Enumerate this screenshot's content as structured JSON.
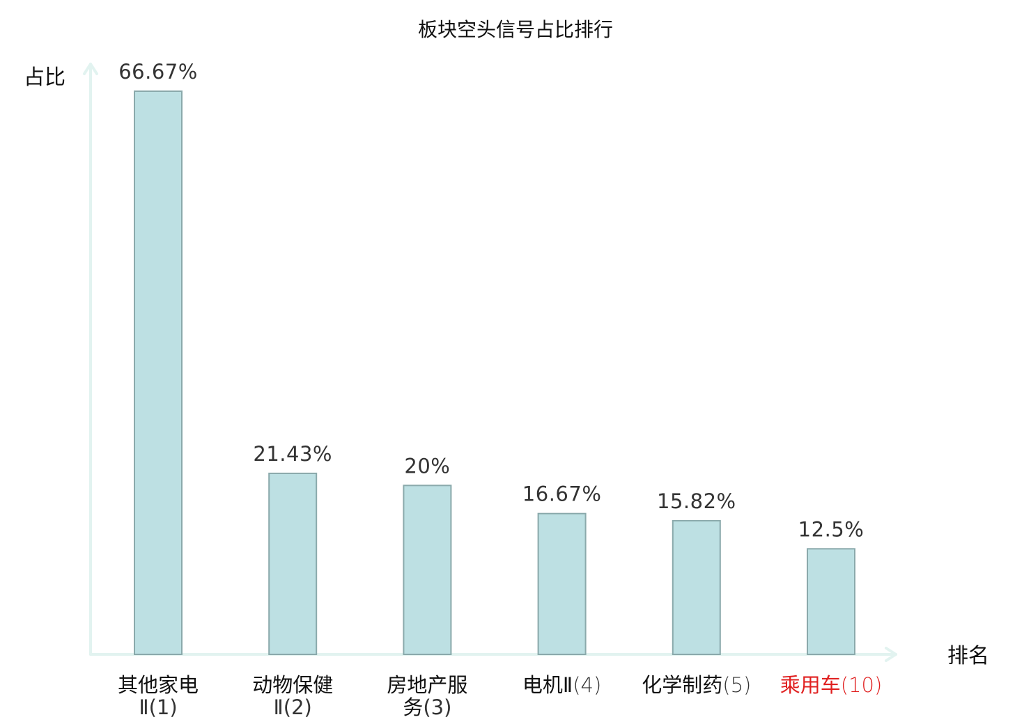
{
  "chart_data": {
    "type": "bar",
    "title": "板块空头信号占比排行",
    "ylabel": "占比",
    "xlabel": "排名",
    "ylim": [
      0,
      70
    ],
    "grid": false,
    "legend": "none",
    "bar_color": "#bde0e3",
    "bar_border_color": "#8aa9ab",
    "axis_color": "#e2f3f0",
    "highlight_color": "#e02020",
    "categories": [
      {
        "name_line1": "其他家电",
        "name_line2": "Ⅱ",
        "rank": "(1)",
        "value": 66.67,
        "value_label": "66.67%",
        "highlight": false
      },
      {
        "name_line1": "动物保健",
        "name_line2": "Ⅱ",
        "rank": "(2)",
        "value": 21.43,
        "value_label": "21.43%",
        "highlight": false
      },
      {
        "name_line1": "房地产服",
        "name_line2": "务",
        "rank": "(3)",
        "value": 20,
        "value_label": "20%",
        "highlight": false
      },
      {
        "name_line1": "电机Ⅱ",
        "name_line2": "",
        "rank": "(4)",
        "value": 16.67,
        "value_label": "16.67%",
        "highlight": false
      },
      {
        "name_line1": "化学制药",
        "name_line2": "",
        "rank": "(5)",
        "value": 15.82,
        "value_label": "15.82%",
        "highlight": false
      },
      {
        "name_line1": "乘用车",
        "name_line2": "",
        "rank": "(10)",
        "value": 12.5,
        "value_label": "12.5%",
        "highlight": true
      }
    ]
  }
}
